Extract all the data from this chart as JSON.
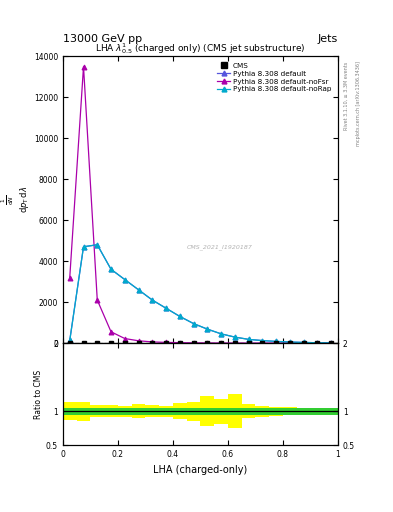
{
  "title_top": "13000 GeV pp",
  "title_right": "Jets",
  "plot_title": "LHA $\\lambda^{1}_{0.5}$ (charged only) (CMS jet substructure)",
  "xlabel": "LHA (charged-only)",
  "ylabel_main_parts": [
    "mathrm d$^2$N",
    "mathrm d p$_\\mathrm{T}$ mathrm d lambda"
  ],
  "ylabel_ratio": "Ratio to CMS",
  "right_label1": "Rivet 3.1.10, ≥ 3.3M events",
  "right_label2": "mcplots.cern.ch [arXiv:1306.3436]",
  "watermark": "CMS_2021_I1920187",
  "x_bins": [
    0.0,
    0.05,
    0.1,
    0.15,
    0.2,
    0.25,
    0.3,
    0.35,
    0.4,
    0.45,
    0.5,
    0.55,
    0.6,
    0.65,
    0.7,
    0.75,
    0.8,
    0.85,
    0.9,
    0.95,
    1.0
  ],
  "pythia_default": [
    130,
    4700,
    4800,
    3600,
    3100,
    2600,
    2100,
    1700,
    1300,
    950,
    680,
    450,
    290,
    180,
    120,
    80,
    50,
    30,
    15,
    8
  ],
  "pythia_noFsr": [
    3200,
    13500,
    2100,
    550,
    220,
    110,
    55,
    32,
    18,
    10,
    5,
    2.5,
    1.2,
    0.7,
    0.4,
    0.2,
    0.1,
    0.05,
    0.03,
    0.01
  ],
  "pythia_noRap": [
    130,
    4700,
    4800,
    3600,
    3100,
    2600,
    2100,
    1700,
    1300,
    950,
    680,
    450,
    290,
    180,
    120,
    80,
    50,
    30,
    15,
    8
  ],
  "color_default": "#5555dd",
  "color_noFsr": "#aa00aa",
  "color_noRap": "#00aacc",
  "color_cms": "#000000",
  "ylim_main": [
    0,
    14000
  ],
  "yticks_main": [
    0,
    2000,
    4000,
    6000,
    8000,
    10000,
    12000,
    14000
  ],
  "ytick_labels_main": [
    "0",
    "2000",
    "4000",
    "6000",
    "8000",
    "10000",
    "12000",
    "14000"
  ],
  "ylim_ratio": [
    0.5,
    2.0
  ],
  "yticks_ratio": [
    0.5,
    1.0,
    2.0
  ],
  "ytick_labels_ratio": [
    "0.5",
    "1",
    "2"
  ],
  "ratio_green_half": 0.05,
  "ratio_yellow_half": [
    0.13,
    0.14,
    0.09,
    0.09,
    0.08,
    0.1,
    0.09,
    0.08,
    0.12,
    0.14,
    0.22,
    0.18,
    0.25,
    0.1,
    0.08,
    0.07,
    0.06,
    0.05,
    0.04,
    0.04
  ]
}
